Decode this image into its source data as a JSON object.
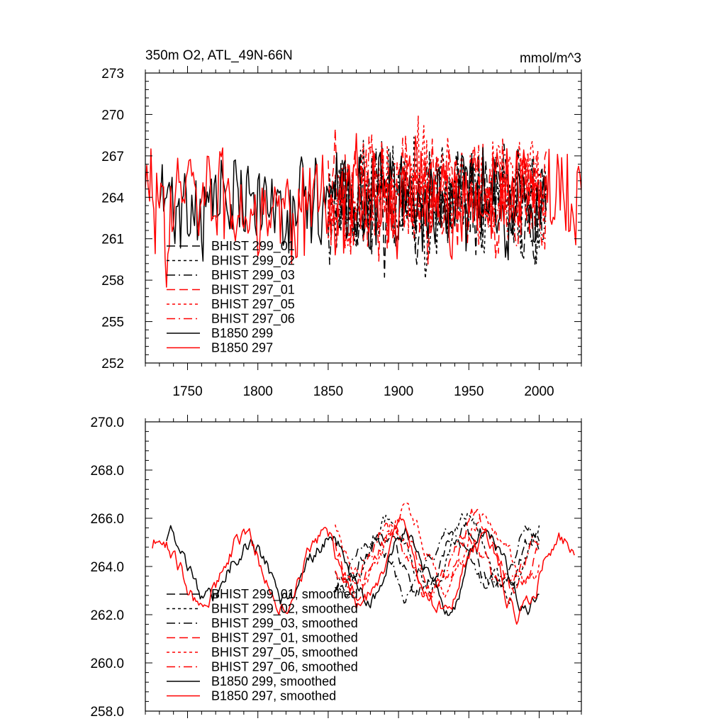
{
  "chart_data": [
    {
      "type": "line",
      "title": "350m O2, ATL_49N-66N",
      "units_label": "mmol/m^3",
      "xlabel": "",
      "ylabel": "",
      "xlim": [
        1720,
        2030
      ],
      "ylim": [
        252,
        273
      ],
      "xticks": [
        1750,
        1800,
        1850,
        1900,
        1950,
        2000
      ],
      "yticks": [
        252,
        255,
        258,
        261,
        264,
        267,
        270,
        273
      ],
      "ytick_labels": [
        "252",
        "255",
        "258",
        "261",
        "264",
        "267",
        "270",
        "273"
      ],
      "grid": false,
      "legend_position": "lower-left",
      "series": [
        {
          "name": "BHIST 299_01",
          "color": "#000000",
          "dash": "long-dash",
          "x_start": 1850,
          "x_end": 2005,
          "mean": 263.5,
          "amp": 3.0,
          "wave": 0.0,
          "seed": 11
        },
        {
          "name": "BHIST 299_02",
          "color": "#000000",
          "dash": "short-dash",
          "x_start": 1850,
          "x_end": 2005,
          "mean": 264.0,
          "amp": 3.2,
          "wave": 0.0,
          "seed": 23
        },
        {
          "name": "BHIST 299_03",
          "color": "#000000",
          "dash": "dash-dot",
          "x_start": 1850,
          "x_end": 2005,
          "mean": 263.8,
          "amp": 3.0,
          "wave": 0.0,
          "seed": 37
        },
        {
          "name": "BHIST 297_01",
          "color": "#ff0000",
          "dash": "long-dash",
          "x_start": 1850,
          "x_end": 2005,
          "mean": 264.2,
          "amp": 3.2,
          "wave": 0.0,
          "seed": 41
        },
        {
          "name": "BHIST 297_05",
          "color": "#ff0000",
          "dash": "short-dash",
          "x_start": 1850,
          "x_end": 2005,
          "mean": 264.8,
          "amp": 3.0,
          "wave": 0.0,
          "seed": 53
        },
        {
          "name": "BHIST 297_06",
          "color": "#ff0000",
          "dash": "dash-dot",
          "x_start": 1850,
          "x_end": 2005,
          "mean": 264.5,
          "amp": 3.0,
          "wave": 0.0,
          "seed": 67
        },
        {
          "name": "B1850 299",
          "color": "#000000",
          "dash": "solid",
          "x_start": 1730,
          "x_end": 2005,
          "mean": 263.6,
          "amp": 2.8,
          "wave": 0.0,
          "seed": 71
        },
        {
          "name": "B1850 297",
          "color": "#ff0000",
          "dash": "solid",
          "x_start": 1720,
          "x_end": 2030,
          "mean": 263.8,
          "amp": 3.0,
          "wave": 0.0,
          "seed": 83
        }
      ]
    },
    {
      "type": "line",
      "title": "",
      "units_label": "",
      "xlabel": "",
      "ylabel": "",
      "xlim": [
        1720,
        2030
      ],
      "ylim": [
        258,
        270
      ],
      "xticks": [
        1750,
        1800,
        1850,
        1900,
        1950,
        2000
      ],
      "yticks": [
        258,
        260,
        262,
        264,
        266,
        268,
        270
      ],
      "ytick_labels": [
        "258.0",
        "260.0",
        "262.0",
        "264.0",
        "266.0",
        "268.0",
        "270.0"
      ],
      "grid": false,
      "legend_position": "lower-left",
      "series": [
        {
          "name": "BHIST 299_01, smoothed",
          "color": "#000000",
          "dash": "long-dash",
          "x_start": 1855,
          "x_end": 2000,
          "mean": 264.3,
          "amp": 1.2,
          "wave": 1.2,
          "seed": 111
        },
        {
          "name": "BHIST 299_02, smoothed",
          "color": "#000000",
          "dash": "short-dash",
          "x_start": 1855,
          "x_end": 2000,
          "mean": 264.5,
          "amp": 1.2,
          "wave": 1.3,
          "seed": 123
        },
        {
          "name": "BHIST 299_03, smoothed",
          "color": "#000000",
          "dash": "dash-dot",
          "x_start": 1855,
          "x_end": 2000,
          "mean": 264.2,
          "amp": 1.1,
          "wave": 1.2,
          "seed": 137
        },
        {
          "name": "BHIST 297_01, smoothed",
          "color": "#ff0000",
          "dash": "long-dash",
          "x_start": 1855,
          "x_end": 2000,
          "mean": 264.6,
          "amp": 1.3,
          "wave": 1.4,
          "seed": 141
        },
        {
          "name": "BHIST 297_05, smoothed",
          "color": "#ff0000",
          "dash": "short-dash",
          "x_start": 1855,
          "x_end": 2000,
          "mean": 264.8,
          "amp": 1.2,
          "wave": 1.3,
          "seed": 153
        },
        {
          "name": "BHIST 297_06, smoothed",
          "color": "#ff0000",
          "dash": "dash-dot",
          "x_start": 1855,
          "x_end": 2000,
          "mean": 264.5,
          "amp": 1.2,
          "wave": 1.2,
          "seed": 167
        },
        {
          "name": "B1850 299, smoothed",
          "color": "#000000",
          "dash": "solid",
          "x_start": 1735,
          "x_end": 2000,
          "mean": 263.9,
          "amp": 1.2,
          "wave": 1.3,
          "seed": 171
        },
        {
          "name": "B1850 297, smoothed",
          "color": "#ff0000",
          "dash": "solid",
          "x_start": 1725,
          "x_end": 2025,
          "mean": 263.8,
          "amp": 1.3,
          "wave": 1.5,
          "seed": 183
        }
      ]
    }
  ]
}
